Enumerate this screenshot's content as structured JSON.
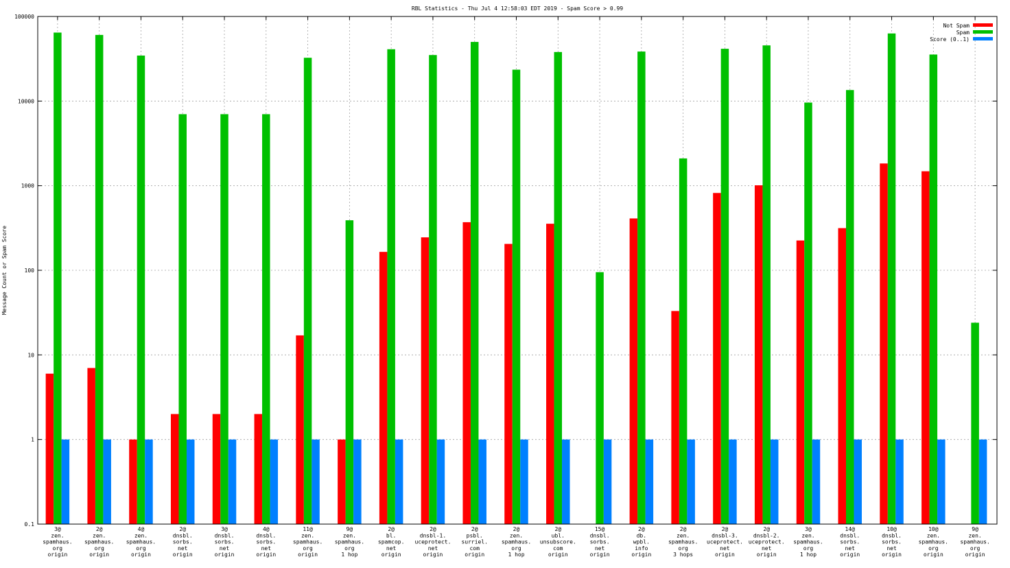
{
  "chart_data": {
    "type": "bar",
    "title": "RBL Statistics - Thu Jul  4 12:58:03 EDT 2019 - Spam Score > 0.99",
    "xlabel": "",
    "ylabel": "Message Count or Spam Score",
    "yscale": "log",
    "ylim": [
      0.1,
      100000
    ],
    "yticks": [
      0.1,
      1,
      10,
      100,
      1000,
      10000,
      100000
    ],
    "ytick_labels": [
      "0.1",
      "1",
      "10",
      "100",
      "1000",
      "10000",
      "100000"
    ],
    "grid": true,
    "legend_position": "top-right",
    "categories": [
      [
        "3@",
        "zen.",
        "spamhaus.",
        "org",
        "origin"
      ],
      [
        "2@",
        "zen.",
        "spamhaus.",
        "org",
        "origin"
      ],
      [
        "4@",
        "zen.",
        "spamhaus.",
        "org",
        "origin"
      ],
      [
        "2@",
        "dnsbl.",
        "sorbs.",
        "net",
        "origin"
      ],
      [
        "3@",
        "dnsbl.",
        "sorbs.",
        "net",
        "origin"
      ],
      [
        "4@",
        "dnsbl.",
        "sorbs.",
        "net",
        "origin"
      ],
      [
        "11@",
        "zen.",
        "spamhaus.",
        "org",
        "origin"
      ],
      [
        "9@",
        "zen.",
        "spamhaus.",
        "org",
        "1 hop"
      ],
      [
        "2@",
        "bl.",
        "spamcop.",
        "net",
        "origin"
      ],
      [
        "2@",
        "dnsbl-1.",
        "uceprotect.",
        "net",
        "origin"
      ],
      [
        "2@",
        "psbl.",
        "surriel.",
        "com",
        "origin"
      ],
      [
        "2@",
        "zen.",
        "spamhaus.",
        "org",
        "1 hop"
      ],
      [
        "2@",
        "ubl.",
        "unsubscore.",
        "com",
        "origin"
      ],
      [
        "15@",
        "dnsbl.",
        "sorbs.",
        "net",
        "origin"
      ],
      [
        "2@",
        "db.",
        "wpbl.",
        "info",
        "origin"
      ],
      [
        "2@",
        "zen.",
        "spamhaus.",
        "org",
        "3 hops"
      ],
      [
        "2@",
        "dnsbl-3.",
        "uceprotect.",
        "net",
        "origin"
      ],
      [
        "2@",
        "dnsbl-2.",
        "uceprotect.",
        "net",
        "origin"
      ],
      [
        "3@",
        "zen.",
        "spamhaus.",
        "org",
        "1 hop"
      ],
      [
        "14@",
        "dnsbl.",
        "sorbs.",
        "net",
        "origin"
      ],
      [
        "10@",
        "dnsbl.",
        "sorbs.",
        "net",
        "origin"
      ],
      [
        "10@",
        "zen.",
        "spamhaus.",
        "org",
        "origin"
      ],
      [
        "9@",
        "zen.",
        "spamhaus.",
        "org",
        "origin"
      ]
    ],
    "series": [
      {
        "name": "Not Spam",
        "color": "#ff0000",
        "values": [
          6,
          7,
          1,
          2,
          2,
          2,
          17,
          1,
          165,
          245,
          370,
          205,
          355,
          null,
          410,
          33,
          820,
          1010,
          225,
          315,
          1830,
          1480,
          null
        ]
      },
      {
        "name": "Spam",
        "color": "#00c000",
        "values": [
          64500,
          60500,
          34500,
          7000,
          7000,
          7000,
          32500,
          390,
          41000,
          35000,
          50000,
          23500,
          38000,
          95,
          38500,
          2100,
          41500,
          45500,
          9600,
          13500,
          63000,
          35500,
          24
        ]
      },
      {
        "name": "Score (0..1)",
        "color": "#0080ff",
        "values": [
          1,
          1,
          1,
          1,
          1,
          1,
          1,
          1,
          1,
          1,
          1,
          1,
          1,
          1,
          1,
          1,
          1,
          1,
          1,
          1,
          1,
          1,
          1
        ]
      }
    ]
  }
}
